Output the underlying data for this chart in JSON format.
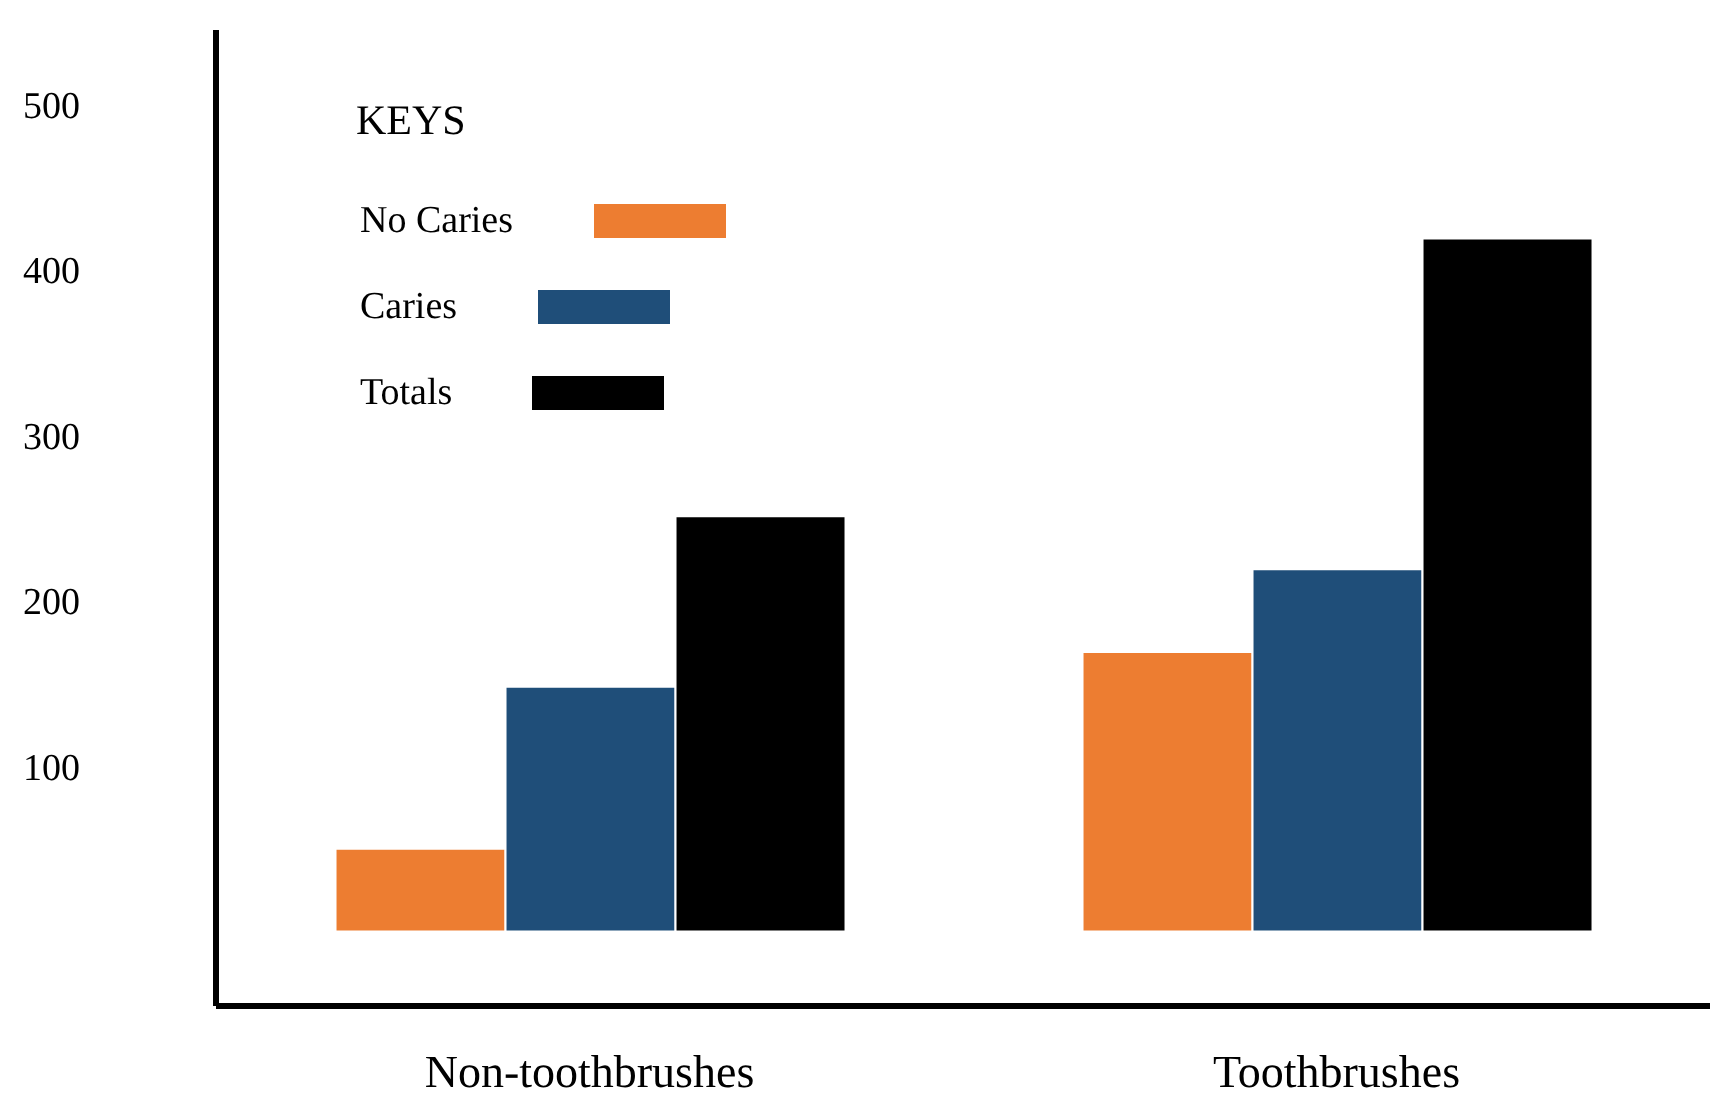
{
  "chart_data": {
    "type": "bar",
    "legend_title": "KEYS",
    "categories": [
      "Non-toothbrushes",
      "Toothbrushes"
    ],
    "series": [
      {
        "name": "No Caries",
        "color": "#ed7d31",
        "values": [
          50,
          169
        ]
      },
      {
        "name": "Caries",
        "color": "#1f4e79",
        "values": [
          148,
          219
        ]
      },
      {
        "name": "Totals",
        "color": "#000000",
        "values": [
          251,
          419
        ]
      }
    ],
    "ylim": [
      -45,
      545
    ],
    "yticks": [
      100,
      200,
      300,
      400,
      500
    ],
    "grid": false,
    "legend": "top left"
  }
}
